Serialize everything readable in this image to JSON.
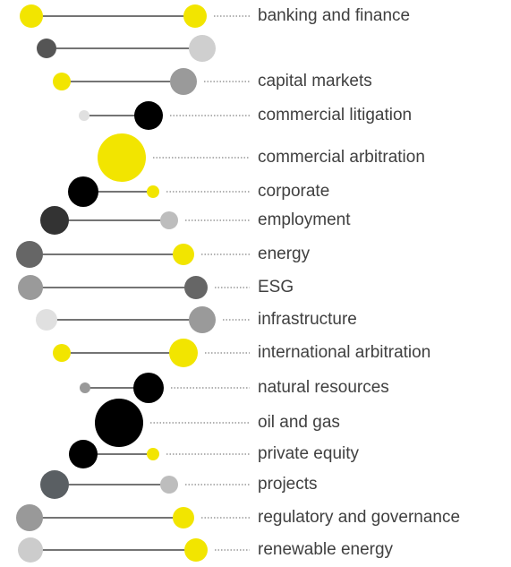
{
  "items": [
    {
      "label": "banking and finance"
    },
    {
      "label": "capital markets"
    },
    {
      "label": "commercial litigation"
    },
    {
      "label": "commercial arbitration"
    },
    {
      "label": "corporate"
    },
    {
      "label": "employment"
    },
    {
      "label": "energy"
    },
    {
      "label": "ESG"
    },
    {
      "label": "infrastructure"
    },
    {
      "label": "international arbitration"
    },
    {
      "label": "natural resources"
    },
    {
      "label": "oil and gas"
    },
    {
      "label": "private equity"
    },
    {
      "label": "projects"
    },
    {
      "label": "regulatory and governance"
    },
    {
      "label": "renewable energy"
    }
  ]
}
